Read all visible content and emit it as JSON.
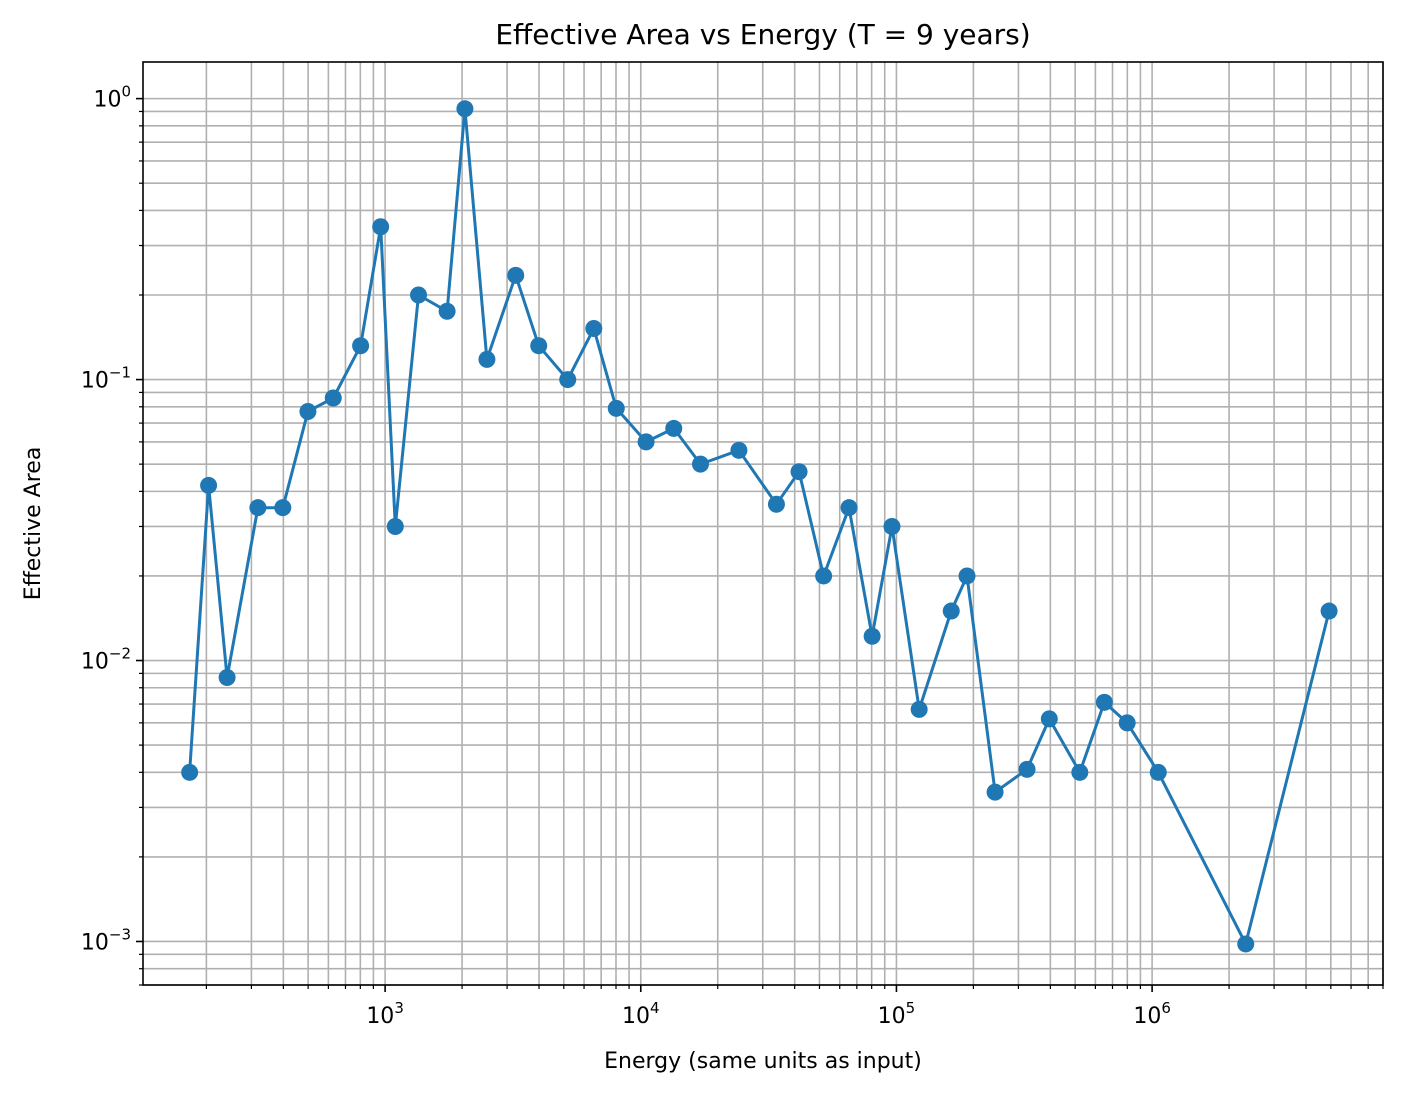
{
  "chart_data": {
    "type": "line",
    "title": "Effective Area vs Energy (T = 9 years)",
    "xlabel": "Energy (same units as input)",
    "ylabel": "Effective Area",
    "xscale": "log",
    "yscale": "log",
    "xlim": [
      113,
      8000000
    ],
    "ylim": [
      0.0007,
      1.35
    ],
    "grid": "major and minor",
    "marker": "circle",
    "color": "#1f77b4",
    "x_ticks": [
      {
        "value": 1000,
        "base": "10",
        "exp": "3"
      },
      {
        "value": 10000,
        "base": "10",
        "exp": "4"
      },
      {
        "value": 100000,
        "base": "10",
        "exp": "5"
      },
      {
        "value": 1000000,
        "base": "10",
        "exp": "6"
      }
    ],
    "y_ticks": [
      {
        "value": 1,
        "base": "10",
        "exp": "0"
      },
      {
        "value": 0.1,
        "base": "10",
        "exp": "−1"
      },
      {
        "value": 0.01,
        "base": "10",
        "exp": "−2"
      },
      {
        "value": 0.001,
        "base": "10",
        "exp": "−3"
      }
    ],
    "series": [
      {
        "x": [
          172,
          204,
          241,
          318,
          398,
          499,
          627,
          802,
          961,
          1096,
          1351,
          1748,
          2052,
          2502,
          3243,
          3989,
          5180,
          6550,
          8019,
          10490,
          13460,
          17120,
          24200,
          33930,
          41600,
          51910,
          65260,
          80340,
          96060,
          122700,
          163800,
          188800,
          243100,
          324200,
          396200,
          521500,
          650600,
          798800,
          1057000,
          2324000,
          4923000
        ],
        "y": [
          0.004,
          0.042,
          0.0087,
          0.035,
          0.035,
          0.077,
          0.086,
          0.132,
          0.35,
          0.03,
          0.2,
          0.175,
          0.92,
          0.118,
          0.235,
          0.132,
          0.1,
          0.152,
          0.079,
          0.06,
          0.067,
          0.05,
          0.056,
          0.036,
          0.047,
          0.02,
          0.035,
          0.0122,
          0.03,
          0.0067,
          0.015,
          0.02,
          0.0034,
          0.0041,
          0.0062,
          0.004,
          0.0071,
          0.006,
          0.004,
          0.00098,
          0.015
        ]
      }
    ]
  }
}
